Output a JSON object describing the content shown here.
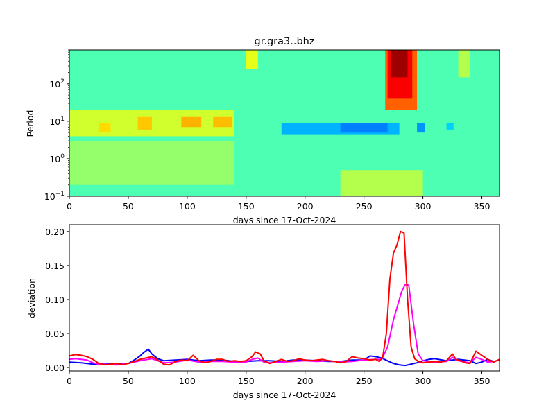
{
  "chart_data": [
    {
      "type": "heatmap",
      "title": "gr.gra3..bhz",
      "xlabel": "days since 17-Oct-2024",
      "ylabel": "Period",
      "xlim": [
        0,
        365
      ],
      "ylim": [
        0.1,
        800
      ],
      "y_scale": "log",
      "x_ticks": [
        0,
        50,
        100,
        150,
        200,
        250,
        300,
        350
      ],
      "y_ticks": [
        {
          "value": 0.1,
          "base": "10",
          "exp": "−1"
        },
        {
          "value": 1,
          "base": "10",
          "exp": "0"
        },
        {
          "value": 10,
          "base": "10",
          "exp": "1"
        },
        {
          "value": 100,
          "base": "10",
          "exp": "2"
        }
      ],
      "colormap": "jet",
      "background_level": 0.45,
      "features": [
        {
          "x0": 0,
          "x1": 140,
          "y0": 4,
          "y1": 20,
          "level": 0.58
        },
        {
          "x0": 25,
          "x1": 35,
          "y0": 5,
          "y1": 9,
          "level": 0.66
        },
        {
          "x0": 58,
          "x1": 70,
          "y0": 6,
          "y1": 13,
          "level": 0.68
        },
        {
          "x0": 95,
          "x1": 112,
          "y0": 7,
          "y1": 13,
          "level": 0.7
        },
        {
          "x0": 122,
          "x1": 138,
          "y0": 7,
          "y1": 13,
          "level": 0.69
        },
        {
          "x0": 0,
          "x1": 140,
          "y0": 0.2,
          "y1": 3,
          "level": 0.52
        },
        {
          "x0": 150,
          "x1": 160,
          "y0": 250,
          "y1": 800,
          "level": 0.6
        },
        {
          "x0": 180,
          "x1": 280,
          "y0": 4.5,
          "y1": 9,
          "level": 0.3
        },
        {
          "x0": 230,
          "x1": 270,
          "y0": 5,
          "y1": 9,
          "level": 0.25
        },
        {
          "x0": 295,
          "x1": 302,
          "y0": 5,
          "y1": 9,
          "level": 0.27
        },
        {
          "x0": 320,
          "x1": 326,
          "y0": 6,
          "y1": 9,
          "level": 0.33
        },
        {
          "x0": 230,
          "x1": 300,
          "y0": 0.1,
          "y1": 0.5,
          "level": 0.55
        },
        {
          "x0": 268,
          "x1": 295,
          "y0": 20,
          "y1": 800,
          "level": 0.78
        },
        {
          "x0": 270,
          "x1": 291,
          "y0": 40,
          "y1": 800,
          "level": 0.88
        },
        {
          "x0": 273,
          "x1": 287,
          "y0": 150,
          "y1": 800,
          "level": 0.97
        },
        {
          "x0": 330,
          "x1": 340,
          "y0": 150,
          "y1": 800,
          "level": 0.55
        }
      ]
    },
    {
      "type": "line",
      "xlabel": "days since 17-Oct-2024",
      "ylabel": "deviation",
      "xlim": [
        0,
        365
      ],
      "ylim": [
        -0.005,
        0.21
      ],
      "x_ticks": [
        0,
        50,
        100,
        150,
        200,
        250,
        300,
        350
      ],
      "y_ticks": [
        "0.00",
        "0.05",
        "0.10",
        "0.15",
        "0.20"
      ],
      "series": [
        {
          "color": "#0000ff",
          "x": [
            0,
            10,
            20,
            30,
            40,
            50,
            55,
            60,
            63,
            67,
            70,
            75,
            80,
            90,
            100,
            110,
            120,
            130,
            140,
            150,
            160,
            170,
            180,
            190,
            200,
            210,
            220,
            230,
            240,
            250,
            255,
            260,
            265,
            270,
            275,
            280,
            285,
            290,
            295,
            300,
            305,
            310,
            320,
            330,
            340,
            345,
            350,
            355,
            360,
            365
          ],
          "y": [
            0.008,
            0.007,
            0.005,
            0.006,
            0.005,
            0.006,
            0.011,
            0.017,
            0.022,
            0.027,
            0.02,
            0.013,
            0.01,
            0.011,
            0.012,
            0.01,
            0.011,
            0.011,
            0.009,
            0.009,
            0.01,
            0.01,
            0.009,
            0.011,
            0.011,
            0.01,
            0.009,
            0.009,
            0.011,
            0.011,
            0.017,
            0.016,
            0.014,
            0.01,
            0.006,
            0.004,
            0.003,
            0.005,
            0.007,
            0.01,
            0.012,
            0.013,
            0.01,
            0.012,
            0.01,
            0.006,
            0.008,
            0.012,
            0.009,
            0.011
          ]
        },
        {
          "color": "#ff00ff",
          "x": [
            0,
            5,
            10,
            15,
            20,
            25,
            30,
            40,
            50,
            60,
            70,
            80,
            90,
            100,
            110,
            120,
            130,
            140,
            150,
            155,
            160,
            165,
            170,
            180,
            190,
            200,
            210,
            220,
            230,
            240,
            250,
            260,
            265,
            270,
            275,
            280,
            282,
            285,
            288,
            292,
            296,
            300,
            310,
            320,
            325,
            330,
            340,
            345,
            350,
            355,
            360,
            365
          ],
          "y": [
            0.012,
            0.013,
            0.012,
            0.011,
            0.007,
            0.005,
            0.005,
            0.004,
            0.006,
            0.01,
            0.013,
            0.007,
            0.008,
            0.011,
            0.008,
            0.009,
            0.009,
            0.008,
            0.008,
            0.012,
            0.014,
            0.008,
            0.007,
            0.008,
            0.009,
            0.01,
            0.009,
            0.01,
            0.008,
            0.009,
            0.011,
            0.012,
            0.012,
            0.03,
            0.07,
            0.1,
            0.112,
            0.122,
            0.121,
            0.065,
            0.02,
            0.01,
            0.008,
            0.009,
            0.015,
            0.01,
            0.007,
            0.015,
            0.012,
            0.008,
            0.009,
            0.011
          ]
        },
        {
          "color": "#ff0000",
          "x": [
            0,
            5,
            10,
            15,
            20,
            25,
            30,
            35,
            40,
            45,
            50,
            55,
            60,
            65,
            70,
            75,
            80,
            85,
            90,
            95,
            100,
            105,
            110,
            115,
            120,
            125,
            130,
            135,
            140,
            145,
            150,
            155,
            158,
            162,
            165,
            170,
            175,
            180,
            185,
            190,
            195,
            200,
            205,
            210,
            215,
            220,
            225,
            230,
            235,
            240,
            245,
            250,
            255,
            260,
            263,
            266,
            269,
            272,
            275,
            278,
            281,
            284,
            287,
            290,
            293,
            296,
            300,
            305,
            310,
            315,
            320,
            325,
            328,
            332,
            336,
            340,
            345,
            350,
            355,
            360,
            365
          ],
          "y": [
            0.017,
            0.019,
            0.018,
            0.016,
            0.012,
            0.006,
            0.004,
            0.005,
            0.006,
            0.004,
            0.006,
            0.009,
            0.012,
            0.014,
            0.016,
            0.011,
            0.005,
            0.004,
            0.009,
            0.011,
            0.01,
            0.018,
            0.01,
            0.007,
            0.009,
            0.012,
            0.012,
            0.009,
            0.01,
            0.009,
            0.01,
            0.016,
            0.023,
            0.02,
            0.01,
            0.006,
            0.009,
            0.012,
            0.009,
            0.01,
            0.013,
            0.011,
            0.01,
            0.011,
            0.012,
            0.01,
            0.009,
            0.007,
            0.009,
            0.016,
            0.014,
            0.013,
            0.011,
            0.012,
            0.009,
            0.016,
            0.05,
            0.13,
            0.168,
            0.18,
            0.2,
            0.198,
            0.1,
            0.03,
            0.013,
            0.009,
            0.007,
            0.008,
            0.009,
            0.008,
            0.01,
            0.02,
            0.012,
            0.01,
            0.007,
            0.006,
            0.024,
            0.018,
            0.012,
            0.008,
            0.012
          ]
        }
      ]
    }
  ]
}
